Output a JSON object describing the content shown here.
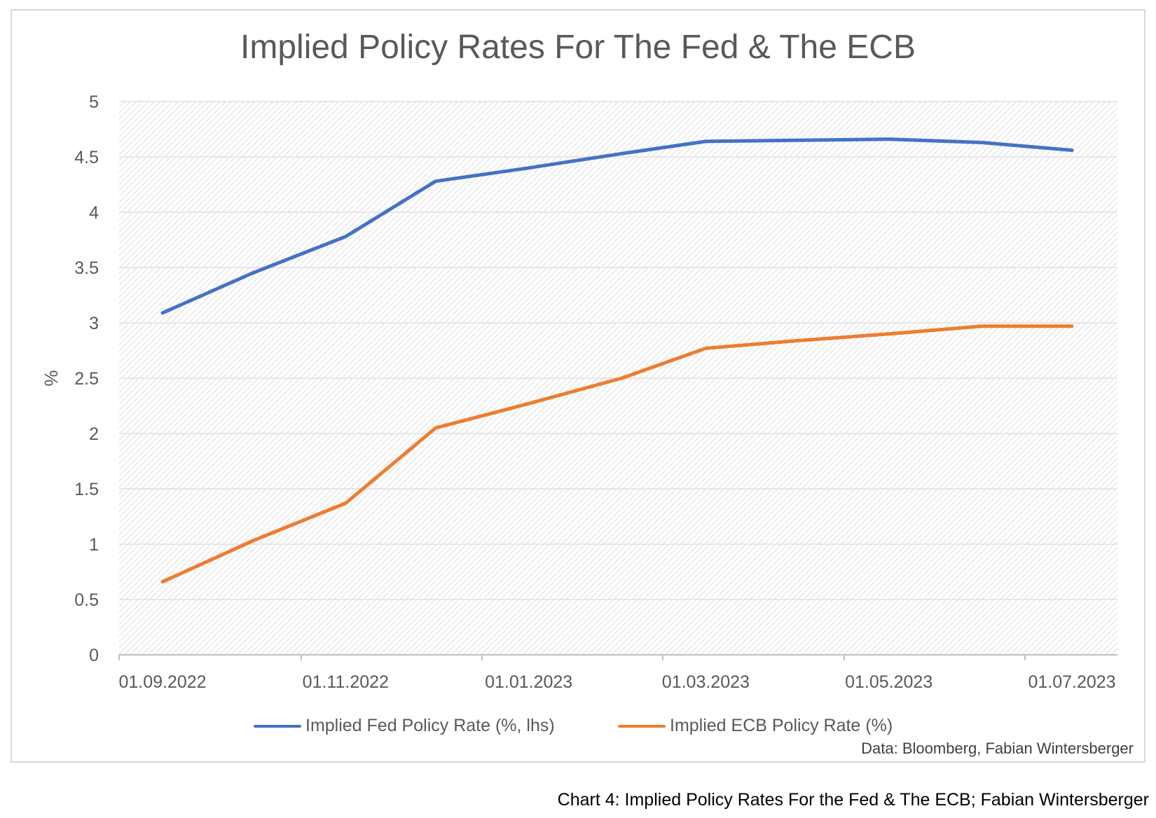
{
  "chart_data": {
    "type": "line",
    "title": "Implied Policy Rates For The Fed & The ECB",
    "ylabel": "%",
    "xlabel": "",
    "ylim": [
      0,
      5
    ],
    "yticks": [
      "0",
      "0.5",
      "1",
      "1.5",
      "2",
      "2.5",
      "3",
      "3.5",
      "4",
      "4.5",
      "5"
    ],
    "x_tick_labels": [
      "01.09.2022",
      "01.11.2022",
      "01.01.2023",
      "01.03.2023",
      "01.05.2023",
      "01.07.2023"
    ],
    "x": [
      "2022-09-01",
      "2022-10-01",
      "2022-11-01",
      "2022-12-01",
      "2023-01-01",
      "2023-02-01",
      "2023-03-01",
      "2023-04-01",
      "2023-05-01",
      "2023-06-01",
      "2023-07-01"
    ],
    "series": [
      {
        "name": "Implied Fed Policy Rate (%, lhs)",
        "color": "#4472c4",
        "values": [
          3.09,
          3.45,
          3.78,
          4.28,
          4.4,
          4.53,
          4.64,
          4.65,
          4.66,
          4.63,
          4.56
        ]
      },
      {
        "name": "Implied ECB Policy Rate (%)",
        "color": "#ed7d31",
        "values": [
          0.66,
          1.03,
          1.37,
          2.05,
          2.27,
          2.5,
          2.77,
          2.84,
          2.9,
          2.97,
          2.97
        ]
      }
    ],
    "grid": true,
    "legend_position": "bottom"
  },
  "source_note": "Data: Bloomberg, Fabian Wintersberger",
  "caption": "Chart 4: Implied Policy Rates For the Fed & The ECB; Fabian Wintersberger"
}
